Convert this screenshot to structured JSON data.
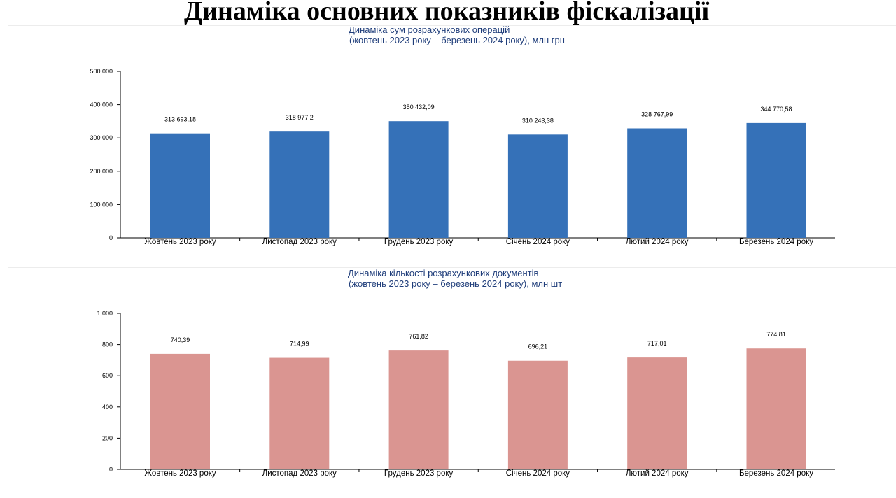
{
  "page": {
    "title": "Динаміка основних показників фіскалізації"
  },
  "chart_data": [
    {
      "type": "bar",
      "title": "Динаміка сум розрахункових операцій",
      "subtitle": "(жовтень 2023 року – березень 2024 року), млн грн",
      "categories": [
        "Жовтень 2023 року",
        "Листопад 2023 року",
        "Грудень 2023 року",
        "Січень 2024 року",
        "Лютий 2024 року",
        "Березень 2024 року"
      ],
      "values": [
        313693.18,
        318977.2,
        350432.09,
        310243.38,
        328767.99,
        344770.58
      ],
      "data_labels": [
        "313 693,18",
        "318 977,2",
        "350 432,09",
        "310 243,38",
        "328 767,99",
        "344 770,58"
      ],
      "yticks": [
        0,
        100000,
        200000,
        300000,
        400000,
        500000
      ],
      "ytick_labels": [
        "0",
        "100 000",
        "200 000",
        "300 000",
        "400 000",
        "500 000"
      ],
      "ylim": [
        0,
        500000
      ],
      "color": "#3571b8",
      "xlabel": "",
      "ylabel": "",
      "grid": false,
      "legend": "none"
    },
    {
      "type": "bar",
      "title": "Динаміка кількості розрахункових документів",
      "subtitle": "(жовтень 2023 року – березень 2024 року), млн шт",
      "categories": [
        "Жовтень 2023 року",
        "Листопад 2023 року",
        "Грудень 2023 року",
        "Січень 2024 року",
        "Лютий 2024 року",
        "Березень 2024 року"
      ],
      "values": [
        740.39,
        714.99,
        761.82,
        696.21,
        717.01,
        774.81
      ],
      "data_labels": [
        "740,39",
        "714,99",
        "761,82",
        "696,21",
        "717,01",
        "774,81"
      ],
      "yticks": [
        0,
        200,
        400,
        600,
        800,
        1000
      ],
      "ytick_labels": [
        "0",
        "200",
        "400",
        "600",
        "800",
        "1 000"
      ],
      "ylim": [
        0,
        1000
      ],
      "color": "#da9591",
      "xlabel": "",
      "ylabel": "",
      "grid": false,
      "legend": "none"
    }
  ]
}
